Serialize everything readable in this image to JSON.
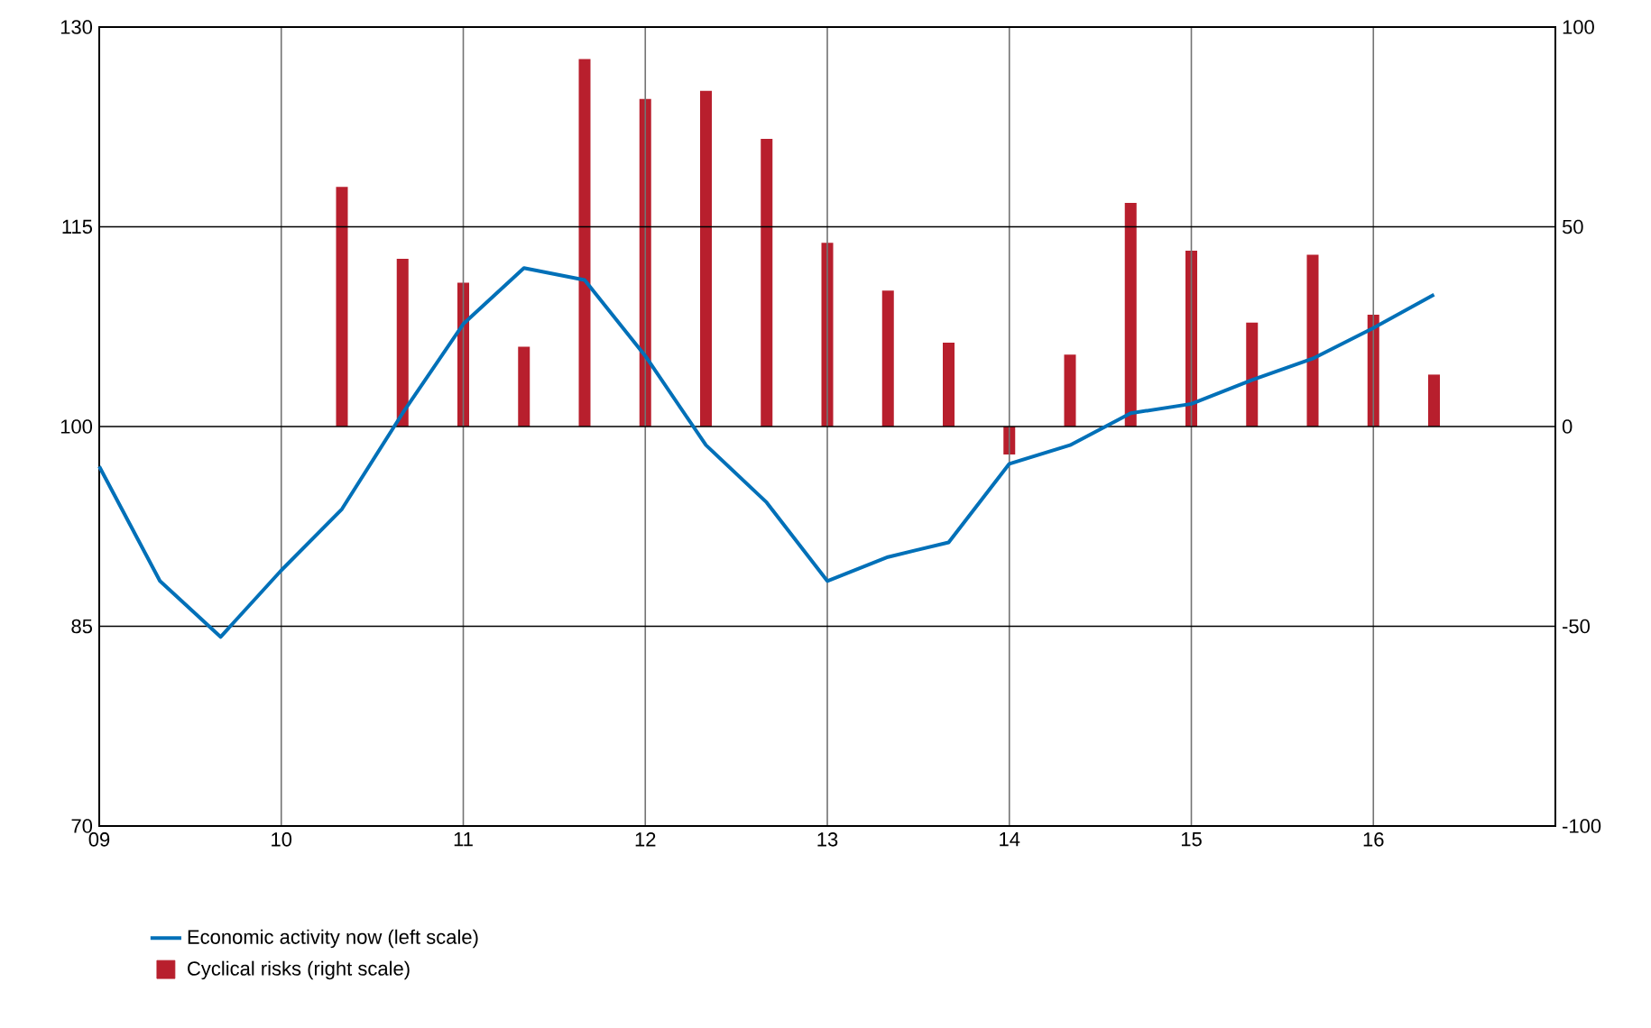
{
  "chart_data": {
    "type": "line",
    "x": [
      "2009-01",
      "2009-05",
      "2009-09",
      "2010-01",
      "2010-05",
      "2010-09",
      "2011-01",
      "2011-05",
      "2011-09",
      "2012-01",
      "2012-05",
      "2012-09",
      "2013-01",
      "2013-05",
      "2013-09",
      "2014-01",
      "2014-05",
      "2014-09",
      "2015-01",
      "2015-05",
      "2015-09",
      "2016-01",
      "2016-05"
    ],
    "series": [
      {
        "name": "Economic activity now (left scale)",
        "color": "#0070b8",
        "values": [
          97.0,
          88.4,
          84.2,
          89.2,
          93.8,
          101.0,
          107.7,
          111.9,
          111.0,
          105.3,
          98.6,
          94.3,
          88.4,
          90.2,
          91.3,
          97.2,
          98.6,
          101.0,
          101.7,
          103.5,
          105.1,
          107.4,
          109.9
        ]
      },
      {
        "name": "Cyclical risks (right scale)",
        "type": "bar",
        "axis": "y2",
        "color": "#b81f2d",
        "x": [
          "2010-05",
          "2010-09",
          "2011-01",
          "2011-05",
          "2011-09",
          "2012-01",
          "2012-05",
          "2012-09",
          "2013-01",
          "2013-05",
          "2013-09",
          "2014-01",
          "2014-05",
          "2014-09",
          "2015-01",
          "2015-05",
          "2015-09",
          "2016-01",
          "2016-05"
        ],
        "values": [
          60,
          42,
          36,
          20,
          92,
          82,
          84,
          72,
          46,
          34,
          21,
          -7,
          18,
          56,
          44,
          26,
          43,
          28,
          13
        ]
      }
    ],
    "xlim": [
      "2009-01",
      "2017-01"
    ],
    "xticks": [
      {
        "value": "2009-01",
        "label": "09"
      },
      {
        "value": "2010-01",
        "label": "10"
      },
      {
        "value": "2011-01",
        "label": "11"
      },
      {
        "value": "2012-01",
        "label": "12"
      },
      {
        "value": "2013-01",
        "label": "13"
      },
      {
        "value": "2014-01",
        "label": "14"
      },
      {
        "value": "2015-01",
        "label": "15"
      },
      {
        "value": "2016-01",
        "label": "16"
      }
    ],
    "ylim": [
      70,
      130
    ],
    "yticks": [
      70,
      85,
      100,
      115,
      130
    ],
    "y2lim": [
      -100,
      100
    ],
    "y2ticks": [
      -100,
      -50,
      0,
      50,
      100
    ],
    "grid": true,
    "legend": "bottom"
  }
}
